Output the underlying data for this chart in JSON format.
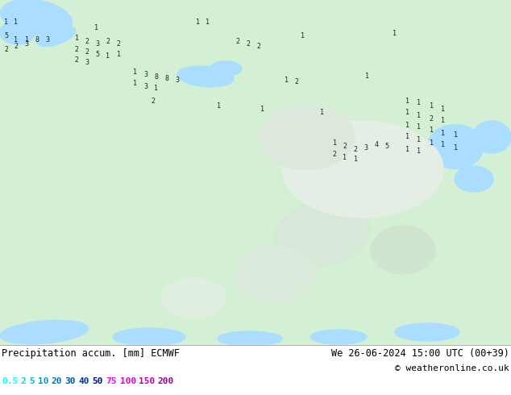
{
  "title_left": "Precipitation accum. [mm] ECMWF",
  "title_right": "We 26-06-2024 15:00 UTC (00+39)",
  "copyright": "© weatheronline.co.uk",
  "map_bg": "#e8f8e8",
  "water_color": "#aaddff",
  "land_color_light": "#d4f0d4",
  "land_color_dark": "#b8e8b8",
  "bottom_bg": "#ffffff",
  "text_color": "#000000",
  "figsize": [
    6.34,
    4.9
  ],
  "dpi": 100,
  "legend_vals_colors": [
    [
      "0.5",
      "#00ffff"
    ],
    [
      "2",
      "#00dddd"
    ],
    [
      "5",
      "#00bbdd"
    ],
    [
      "10",
      "#0099cc"
    ],
    [
      "20",
      "#0077bb"
    ],
    [
      "30",
      "#0055aa"
    ],
    [
      "40",
      "#003399"
    ],
    [
      "50",
      "#001188"
    ],
    [
      "75",
      "#ff00ff"
    ],
    [
      "100",
      "#dd00dd"
    ],
    [
      "150",
      "#bb00bb"
    ],
    [
      "200",
      "#990099"
    ]
  ],
  "precip_numbers": [
    [
      8,
      462,
      "1"
    ],
    [
      20,
      462,
      "1"
    ],
    [
      245,
      462,
      "1"
    ],
    [
      258,
      462,
      "1"
    ],
    [
      8,
      445,
      "5"
    ],
    [
      20,
      440,
      "1"
    ],
    [
      33,
      440,
      "1"
    ],
    [
      46,
      440,
      "8"
    ],
    [
      59,
      440,
      "3"
    ],
    [
      8,
      428,
      "2"
    ],
    [
      20,
      432,
      "2"
    ],
    [
      33,
      435,
      "3"
    ],
    [
      95,
      442,
      "1"
    ],
    [
      108,
      438,
      "2"
    ],
    [
      121,
      435,
      "3"
    ],
    [
      134,
      438,
      "2"
    ],
    [
      147,
      435,
      "2"
    ],
    [
      95,
      428,
      "2"
    ],
    [
      108,
      425,
      "2"
    ],
    [
      121,
      422,
      "5"
    ],
    [
      134,
      420,
      "1"
    ],
    [
      147,
      422,
      "1"
    ],
    [
      95,
      415,
      "2"
    ],
    [
      108,
      412,
      "3"
    ],
    [
      168,
      400,
      "1"
    ],
    [
      181,
      397,
      "3"
    ],
    [
      194,
      394,
      "8"
    ],
    [
      207,
      392,
      "8"
    ],
    [
      220,
      390,
      "3"
    ],
    [
      168,
      386,
      "1"
    ],
    [
      181,
      383,
      "3"
    ],
    [
      194,
      380,
      "1"
    ],
    [
      295,
      438,
      "2"
    ],
    [
      308,
      435,
      "2"
    ],
    [
      321,
      432,
      "2"
    ],
    [
      355,
      390,
      "1"
    ],
    [
      368,
      388,
      "2"
    ],
    [
      400,
      350,
      "1"
    ],
    [
      190,
      365,
      "2"
    ],
    [
      325,
      355,
      "1"
    ],
    [
      415,
      312,
      "1"
    ],
    [
      428,
      308,
      "2"
    ],
    [
      441,
      305,
      "2"
    ],
    [
      454,
      307,
      "3"
    ],
    [
      467,
      310,
      "4"
    ],
    [
      480,
      308,
      "5"
    ],
    [
      415,
      298,
      "2"
    ],
    [
      428,
      295,
      "1"
    ],
    [
      441,
      292,
      "1"
    ],
    [
      505,
      365,
      "1"
    ],
    [
      520,
      362,
      "1"
    ],
    [
      535,
      358,
      "1"
    ],
    [
      550,
      355,
      "1"
    ],
    [
      505,
      350,
      "1"
    ],
    [
      520,
      347,
      "1"
    ],
    [
      535,
      343,
      "2"
    ],
    [
      550,
      340,
      "1"
    ],
    [
      505,
      335,
      "1"
    ],
    [
      520,
      332,
      "1"
    ],
    [
      535,
      328,
      "1"
    ],
    [
      550,
      325,
      "1"
    ],
    [
      565,
      322,
      "1"
    ],
    [
      505,
      320,
      "1"
    ],
    [
      520,
      317,
      "1"
    ],
    [
      535,
      313,
      "1"
    ],
    [
      550,
      310,
      "1"
    ],
    [
      565,
      307,
      "1"
    ],
    [
      505,
      305,
      "1"
    ],
    [
      520,
      302,
      "1"
    ],
    [
      120,
      455,
      "1"
    ],
    [
      490,
      448,
      "1"
    ],
    [
      375,
      445,
      "1"
    ],
    [
      272,
      358,
      "1"
    ],
    [
      455,
      395,
      "1"
    ]
  ]
}
